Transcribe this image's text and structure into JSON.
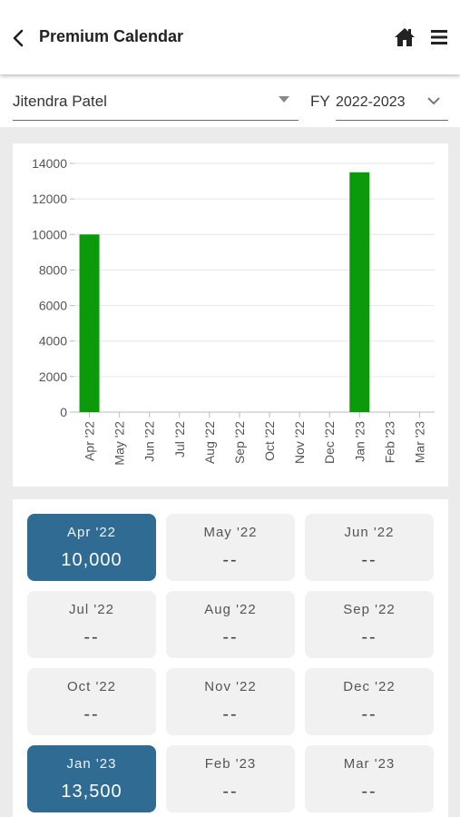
{
  "header": {
    "title": "Premium Calendar",
    "back_icon": "chevron-left-icon",
    "home_icon": "home-icon",
    "menu_icon": "hamburger-menu-icon"
  },
  "filters": {
    "user": "Jitendra Patel",
    "fy_label": "FY",
    "fy_value": "2022-2023"
  },
  "colors": {
    "bar": "#0a9a0a",
    "active_tile": "#306b94",
    "tile": "#f1f1f1"
  },
  "chart_data": {
    "type": "bar",
    "categories": [
      "Apr '22",
      "May '22",
      "Jun '22",
      "Jul '22",
      "Aug '22",
      "Sep '22",
      "Oct '22",
      "Nov '22",
      "Dec '22",
      "Jan '23",
      "Feb '23",
      "Mar '23"
    ],
    "values": [
      10000,
      0,
      0,
      0,
      0,
      0,
      0,
      0,
      0,
      13500,
      0,
      0
    ],
    "yticks": [
      0,
      2000,
      4000,
      6000,
      8000,
      10000,
      12000,
      14000
    ],
    "ylim": [
      0,
      14000
    ],
    "grid": true
  },
  "months": [
    {
      "label": "Apr '22",
      "value": "10,000",
      "active": true
    },
    {
      "label": "May '22",
      "value": "--",
      "active": false
    },
    {
      "label": "Jun '22",
      "value": "--",
      "active": false
    },
    {
      "label": "Jul '22",
      "value": "--",
      "active": false
    },
    {
      "label": "Aug '22",
      "value": "--",
      "active": false
    },
    {
      "label": "Sep '22",
      "value": "--",
      "active": false
    },
    {
      "label": "Oct '22",
      "value": "--",
      "active": false
    },
    {
      "label": "Nov '22",
      "value": "--",
      "active": false
    },
    {
      "label": "Dec '22",
      "value": "--",
      "active": false
    },
    {
      "label": "Jan '23",
      "value": "13,500",
      "active": true
    },
    {
      "label": "Feb '23",
      "value": "--",
      "active": false
    },
    {
      "label": "Mar '23",
      "value": "--",
      "active": false
    }
  ]
}
